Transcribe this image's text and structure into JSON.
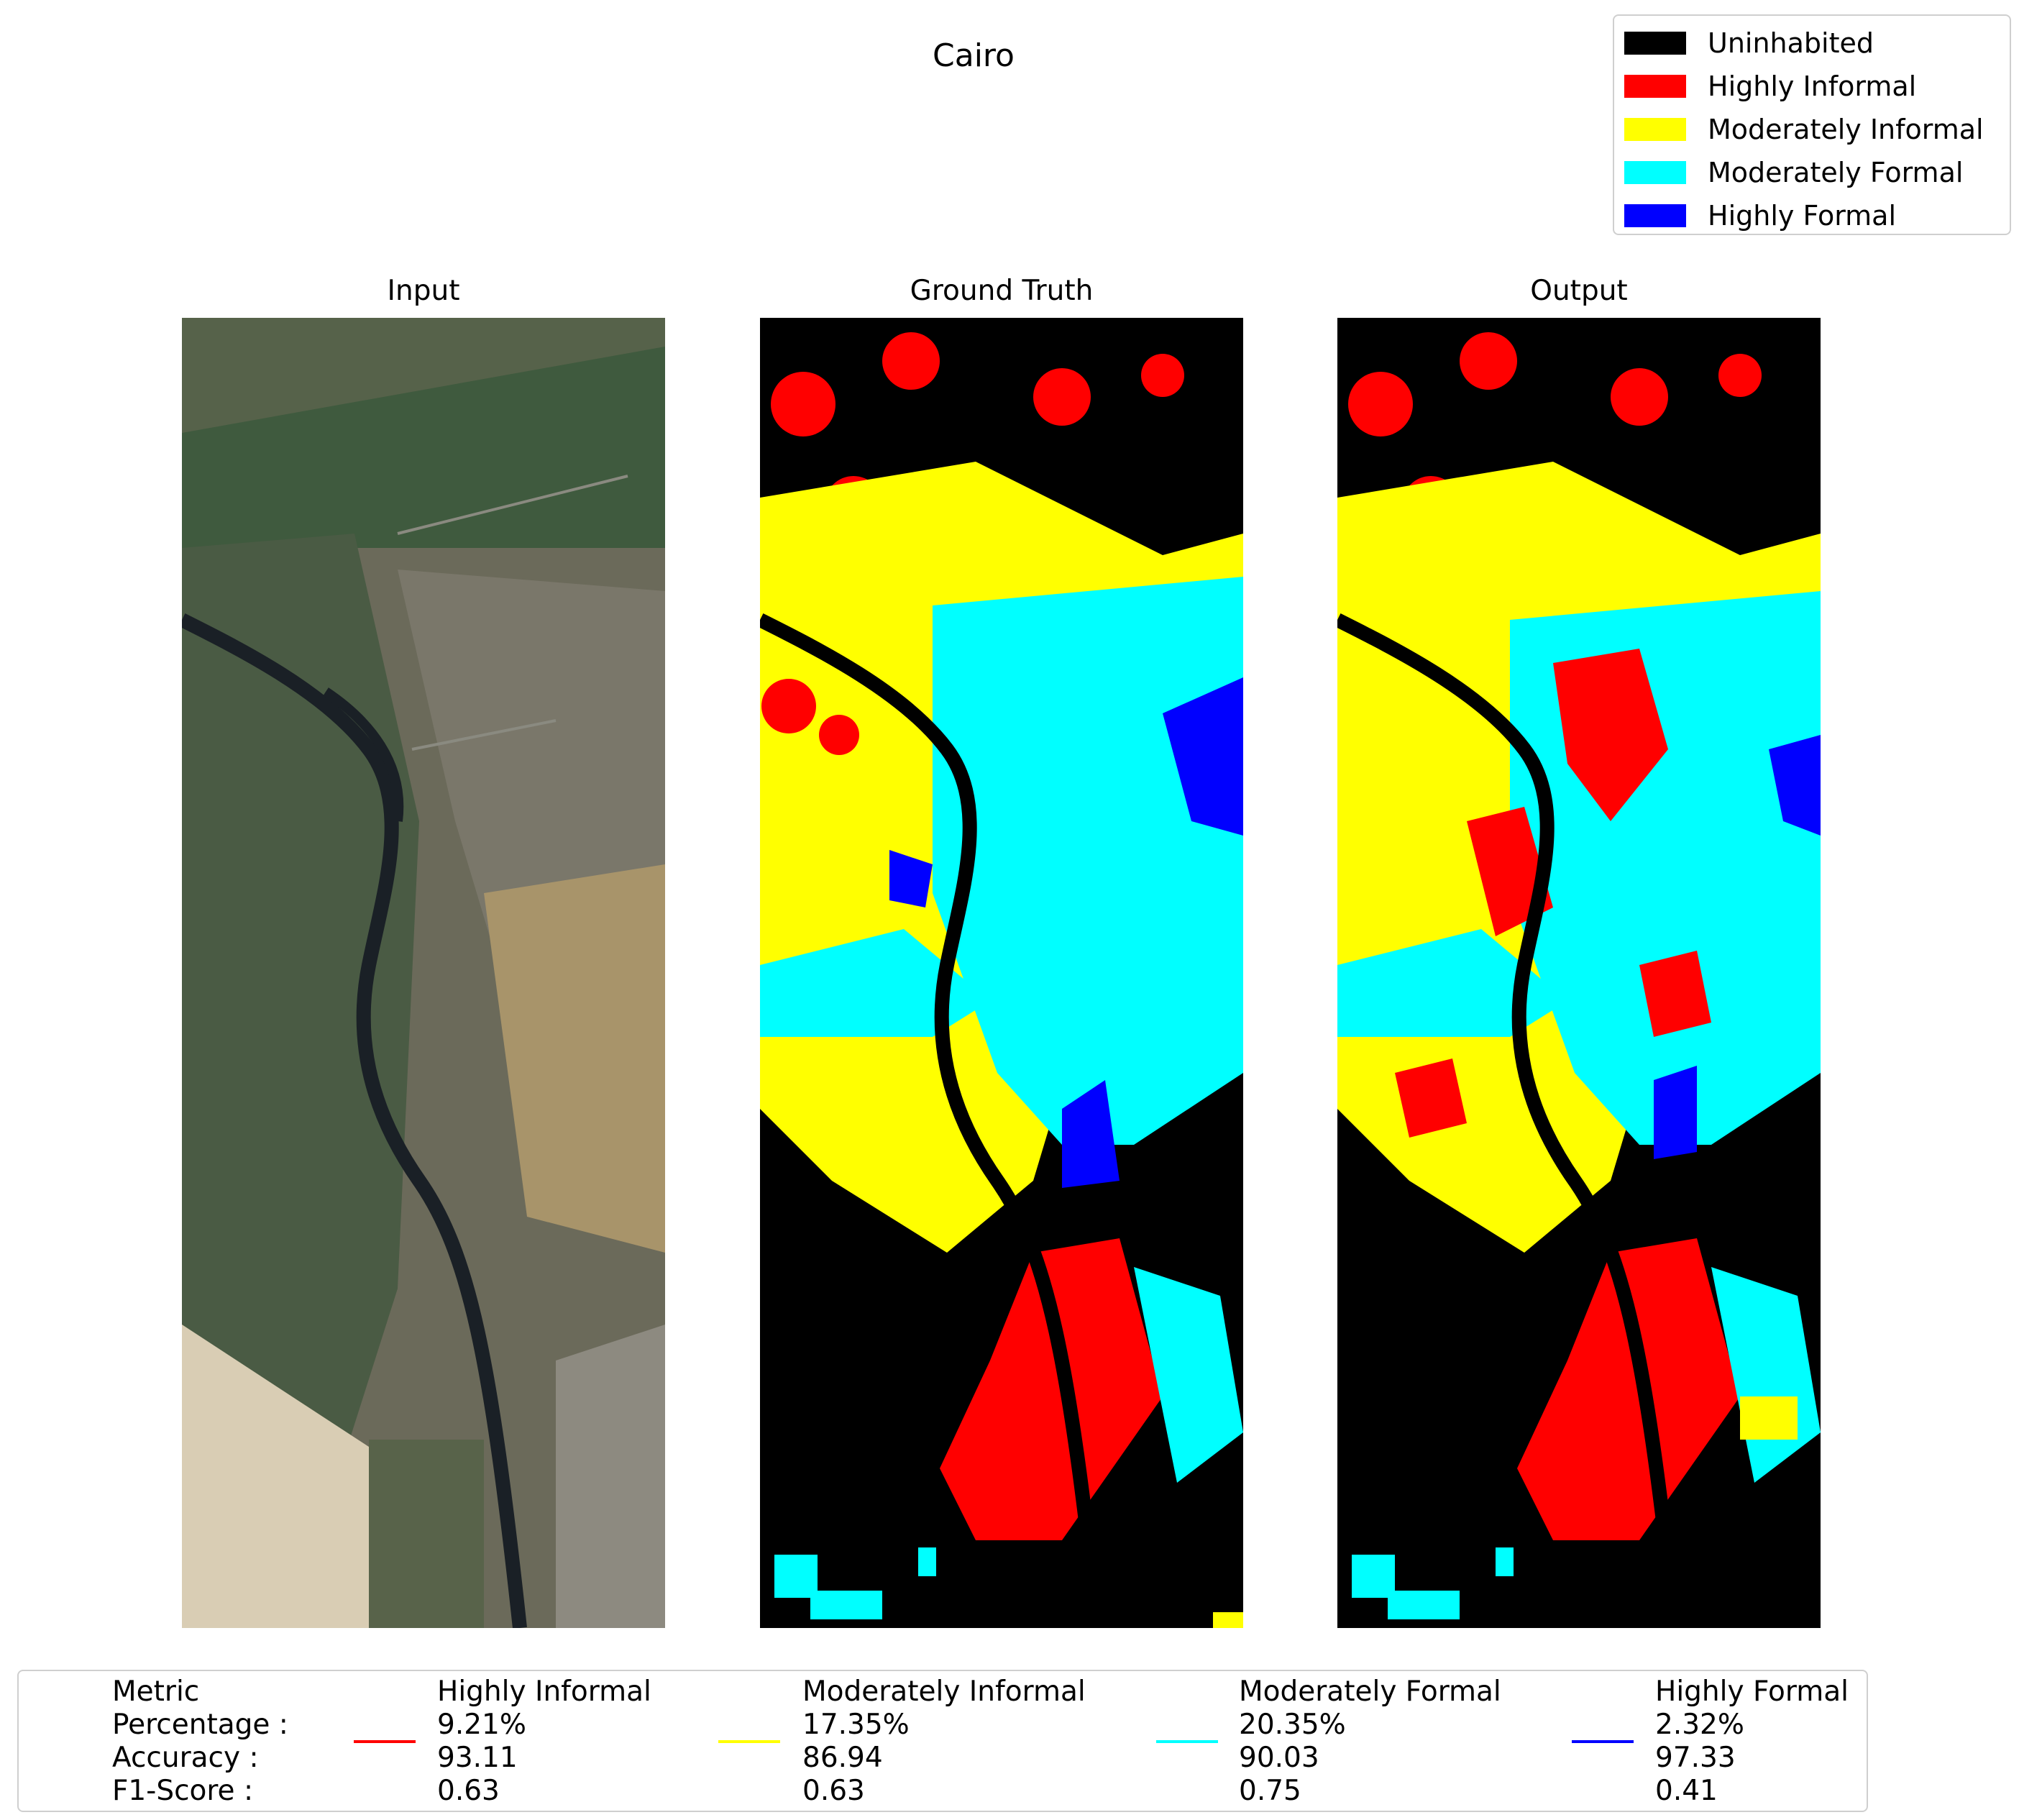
{
  "figure": {
    "title": "Cairo"
  },
  "legend": {
    "items": [
      {
        "label": "Uninhabited",
        "color": "#000000"
      },
      {
        "label": "Highly Informal",
        "color": "#ff0000"
      },
      {
        "label": "Moderately Informal",
        "color": "#ffff00"
      },
      {
        "label": "Moderately Formal",
        "color": "#00ffff"
      },
      {
        "label": "Highly Formal",
        "color": "#0000ff"
      }
    ]
  },
  "panels": {
    "input": {
      "title": "Input"
    },
    "ground_truth": {
      "title": "Ground Truth"
    },
    "output": {
      "title": "Output"
    }
  },
  "metrics": {
    "header": {
      "metric": "Metric",
      "percentage": "Percentage :",
      "accuracy": "Accuracy :",
      "f1": "F1-Score :"
    },
    "classes": [
      {
        "name": "Highly Informal",
        "color": "#ff0000",
        "percentage": "9.21%",
        "accuracy": "93.11",
        "f1": "0.63"
      },
      {
        "name": "Moderately Informal",
        "color": "#ffff00",
        "percentage": "17.35%",
        "accuracy": "86.94",
        "f1": "0.63"
      },
      {
        "name": "Moderately Formal",
        "color": "#00ffff",
        "percentage": "20.35%",
        "accuracy": "90.03",
        "f1": "0.75"
      },
      {
        "name": "Highly Formal",
        "color": "#0000ff",
        "percentage": "2.32%",
        "accuracy": "97.33",
        "f1": "0.41"
      }
    ]
  }
}
